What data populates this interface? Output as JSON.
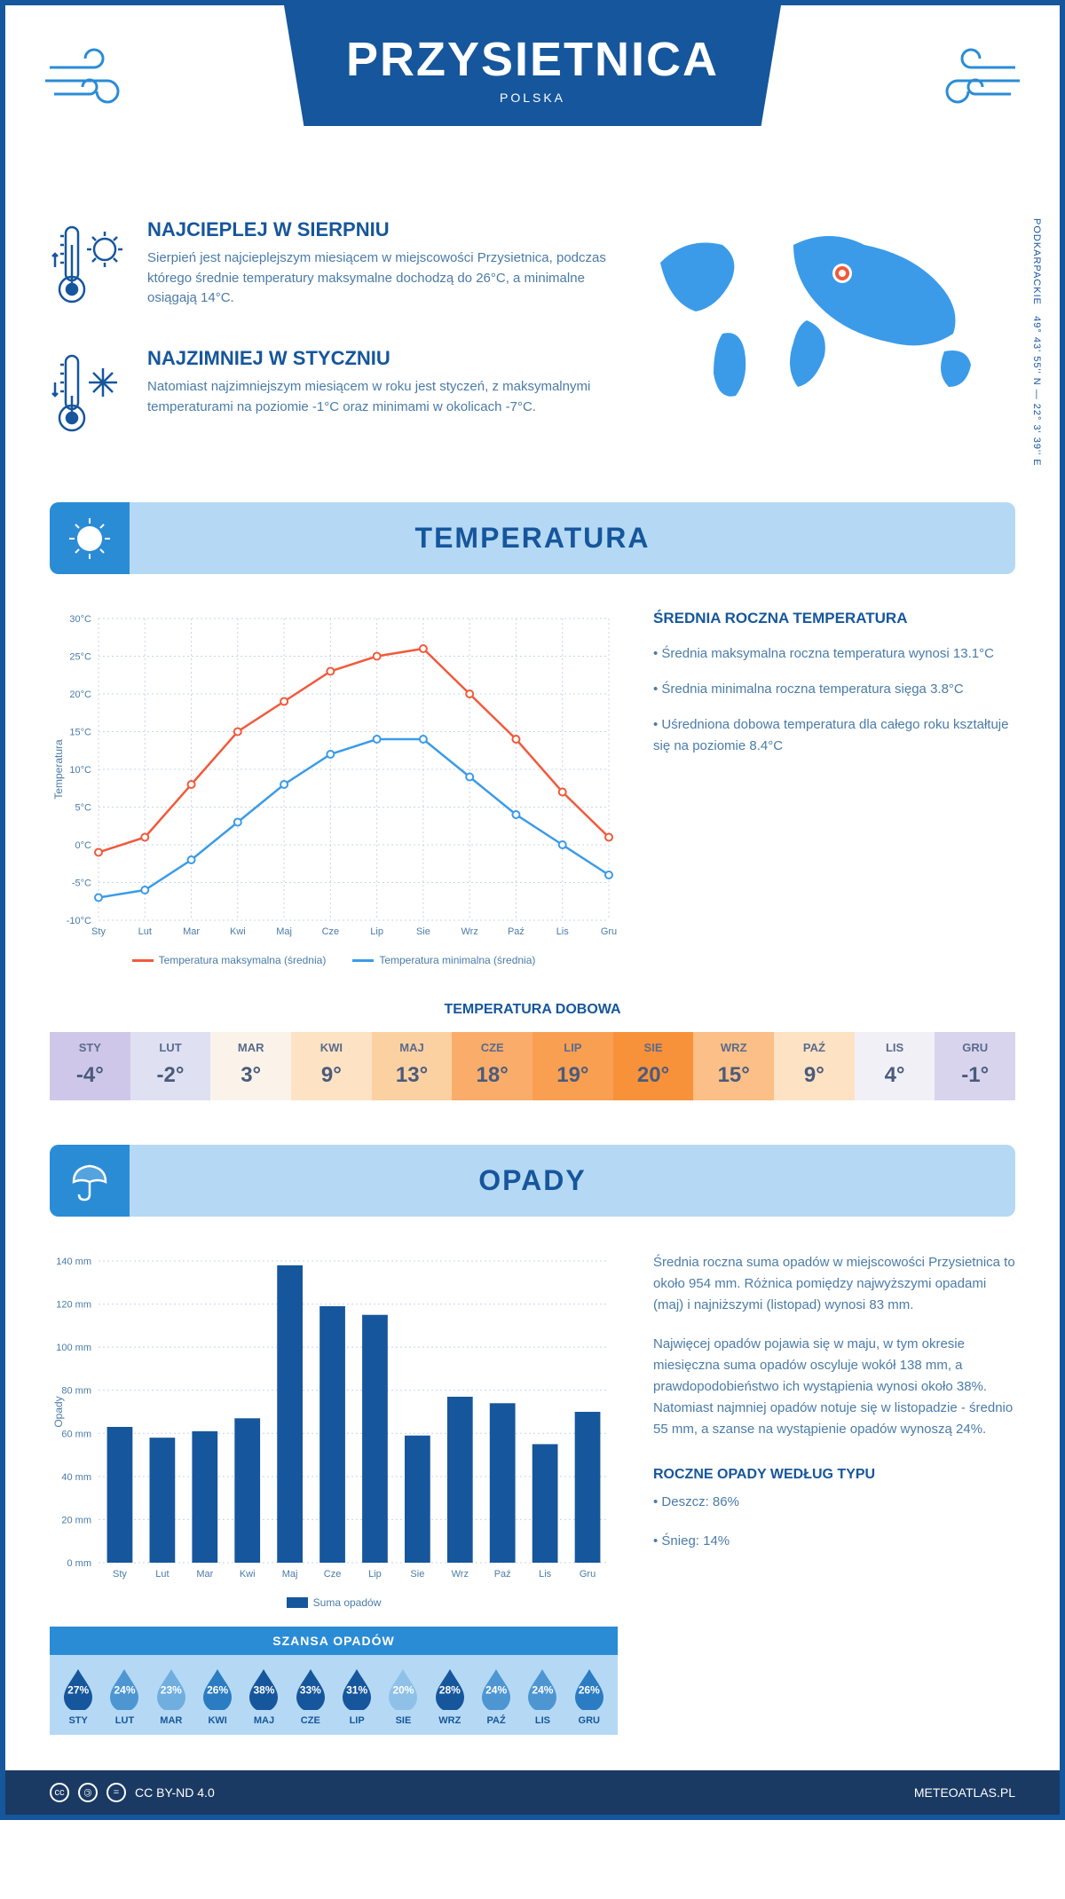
{
  "header": {
    "title": "PRZYSIETNICA",
    "country": "POLSKA"
  },
  "coords": {
    "text": "49° 43' 55'' N — 22° 3' 39'' E",
    "region": "PODKARPACKIE"
  },
  "intro": {
    "warm": {
      "title": "NAJCIEPLEJ W SIERPNIU",
      "text": "Sierpień jest najcieplejszym miesiącem w miejscowości Przysietnica, podczas którego średnie temperatury maksymalne dochodzą do 26°C, a minimalne osiągają 14°C."
    },
    "cold": {
      "title": "NAJZIMNIEJ W STYCZNIU",
      "text": "Natomiast najzimniejszym miesiącem w roku jest styczeń, z maksymalnymi temperaturami na poziomie -1°C oraz minimami w okolicach -7°C."
    }
  },
  "temp_section": {
    "banner": "TEMPERATURA",
    "info_title": "ŚREDNIA ROCZNA TEMPERATURA",
    "bullets": [
      "• Średnia maksymalna roczna temperatura wynosi 13.1°C",
      "• Średnia minimalna roczna temperatura sięga 3.8°C",
      "• Uśredniona dobowa temperatura dla całego roku kształtuje się na poziomie 8.4°C"
    ],
    "chart": {
      "type": "line",
      "months": [
        "Sty",
        "Lut",
        "Mar",
        "Kwi",
        "Maj",
        "Cze",
        "Lip",
        "Sie",
        "Wrz",
        "Paź",
        "Lis",
        "Gru"
      ],
      "max_series": [
        -1,
        1,
        8,
        15,
        19,
        23,
        25,
        26,
        20,
        14,
        7,
        1
      ],
      "min_series": [
        -7,
        -6,
        -2,
        3,
        8,
        12,
        14,
        14,
        9,
        4,
        0,
        -4
      ],
      "max_color": "#f15a3c",
      "min_color": "#3b9be8",
      "ylim": [
        -10,
        30
      ],
      "ytick_step": 5,
      "ylabel": "Temperatura",
      "grid_color": "#c8d4e8",
      "legend_max": "Temperatura maksymalna (średnia)",
      "legend_min": "Temperatura minimalna (średnia)"
    },
    "dobowa_title": "TEMPERATURA DOBOWA",
    "dobowa": {
      "months": [
        "STY",
        "LUT",
        "MAR",
        "KWI",
        "MAJ",
        "CZE",
        "LIP",
        "SIE",
        "WRZ",
        "PAŹ",
        "LIS",
        "GRU"
      ],
      "values": [
        "-4°",
        "-2°",
        "3°",
        "9°",
        "13°",
        "18°",
        "19°",
        "20°",
        "15°",
        "9°",
        "4°",
        "-1°"
      ],
      "colors": [
        "#cfc7ea",
        "#dfe0f2",
        "#fbf3ea",
        "#fde2c4",
        "#fcd1a2",
        "#faad6b",
        "#f99f52",
        "#f8923a",
        "#fbbf87",
        "#fde2c4",
        "#f1f0f7",
        "#d9d4ee"
      ]
    }
  },
  "precip_section": {
    "banner": "OPADY",
    "paragraphs": [
      "Średnia roczna suma opadów w miejscowości Przysietnica to około 954 mm. Różnica pomiędzy najwyższymi opadami (maj) i najniższymi (listopad) wynosi 83 mm.",
      "Najwięcej opadów pojawia się w maju, w tym okresie miesięczna suma opadów oscyluje wokół 138 mm, a prawdopodobieństwo ich wystąpienia wynosi około 38%. Natomiast najmniej opadów notuje się w listopadzie - średnio 55 mm, a szanse na wystąpienie opadów wynoszą 24%."
    ],
    "chart": {
      "type": "bar",
      "months": [
        "Sty",
        "Lut",
        "Mar",
        "Kwi",
        "Maj",
        "Cze",
        "Lip",
        "Sie",
        "Wrz",
        "Paź",
        "Lis",
        "Gru"
      ],
      "values": [
        63,
        58,
        61,
        67,
        138,
        119,
        115,
        59,
        77,
        74,
        55,
        70
      ],
      "bar_color": "#16569c",
      "ylim": [
        0,
        140
      ],
      "ytick_step": 20,
      "ylabel": "Opady",
      "legend": "Suma opadów",
      "grid_color": "#c8d4e8"
    },
    "chance": {
      "title": "SZANSA OPADÓW",
      "months": [
        "STY",
        "LUT",
        "MAR",
        "KWI",
        "MAJ",
        "CZE",
        "LIP",
        "SIE",
        "WRZ",
        "PAŹ",
        "LIS",
        "GRU"
      ],
      "values": [
        "27%",
        "24%",
        "23%",
        "26%",
        "38%",
        "33%",
        "31%",
        "20%",
        "28%",
        "24%",
        "24%",
        "26%"
      ],
      "colors": [
        "#16569c",
        "#4d96d2",
        "#70aee0",
        "#2b7cc2",
        "#16569c",
        "#16569c",
        "#16569c",
        "#8fc1e8",
        "#16569c",
        "#4d96d2",
        "#4d96d2",
        "#2b7cc2"
      ]
    },
    "type_title": "ROCZNE OPADY WEDŁUG TYPU",
    "type_bullets": [
      "• Deszcz: 86%",
      "• Śnieg: 14%"
    ]
  },
  "footer": {
    "license": "CC BY-ND 4.0",
    "site": "METEOATLAS.PL"
  }
}
